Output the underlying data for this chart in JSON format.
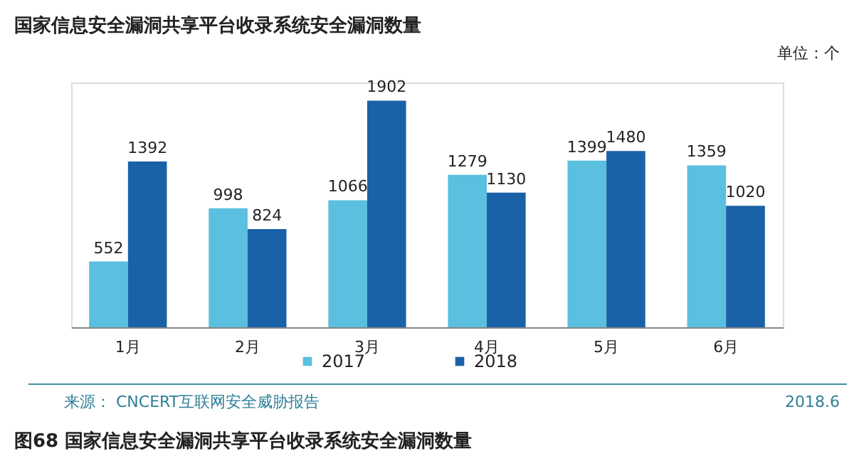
{
  "chart_data": {
    "type": "bar",
    "title": "国家信息安全漏洞共享平台收录系统安全漏洞数量",
    "categories": [
      "1月",
      "2月",
      "3月",
      "4月",
      "5月",
      "6月"
    ],
    "series": [
      {
        "name": "2017",
        "color": "#5bbfdf",
        "values": [
          552,
          998,
          1066,
          1279,
          1399,
          1359
        ]
      },
      {
        "name": "2018",
        "color": "#1a62a8",
        "values": [
          1392,
          824,
          1902,
          1130,
          1480,
          1020
        ]
      }
    ],
    "data_labels": true,
    "legend": "bottom",
    "grid": false,
    "annotations": [
      "单位：个",
      "来源： CNCERT互联网安全威胁报告",
      "2018.6",
      "图68  国家信息安全漏洞共享平台收录系统安全漏洞数量"
    ]
  }
}
